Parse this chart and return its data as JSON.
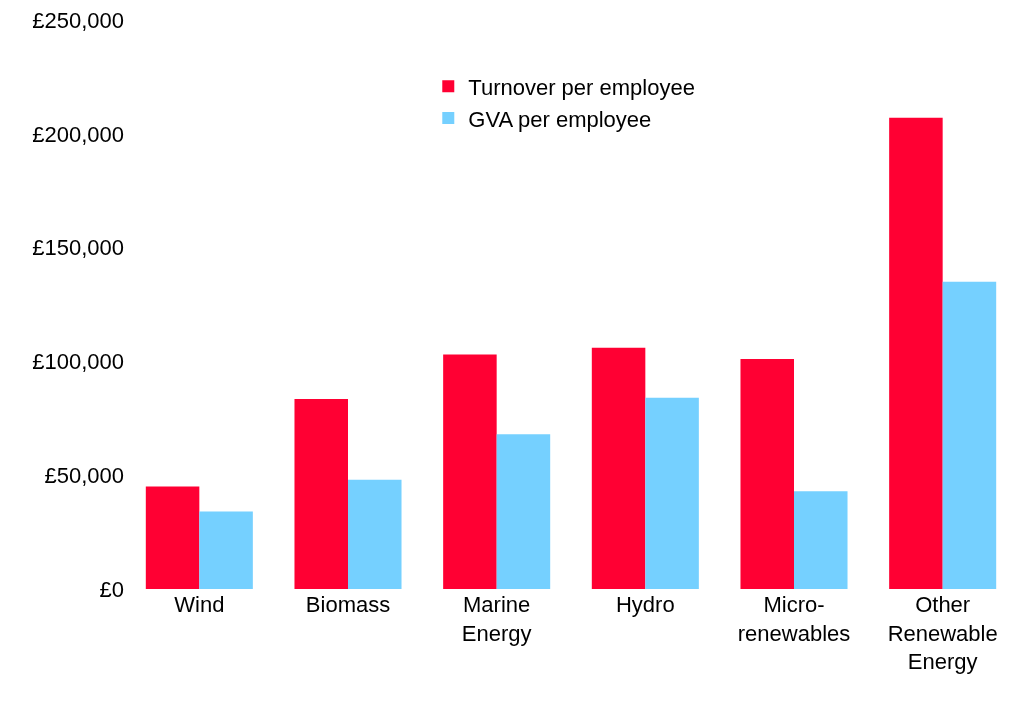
{
  "chart_data": {
    "type": "bar",
    "categories": [
      "Wind",
      "Biomass",
      "Marine\nEnergy",
      "Hydro",
      "Micro-\nrenewables",
      "Other\nRenewable\nEnergy"
    ],
    "series": [
      {
        "name": "Turnover per employee",
        "color": "#ff0033",
        "values": [
          45000,
          83500,
          103000,
          106000,
          101000,
          207000
        ]
      },
      {
        "name": "GVA per employee",
        "color": "#75d0ff",
        "values": [
          34000,
          48000,
          68000,
          84000,
          43000,
          135000
        ]
      }
    ],
    "ylim": [
      0,
      250000
    ],
    "yticks": [
      {
        "value": 0,
        "label": "£0"
      },
      {
        "value": 50000,
        "label": "£50,000"
      },
      {
        "value": 100000,
        "label": "£100,000"
      },
      {
        "value": 150000,
        "label": "£150,000"
      },
      {
        "value": 200000,
        "label": "£200,000"
      },
      {
        "value": 250000,
        "label": "£250,000"
      }
    ],
    "legend": "top"
  }
}
